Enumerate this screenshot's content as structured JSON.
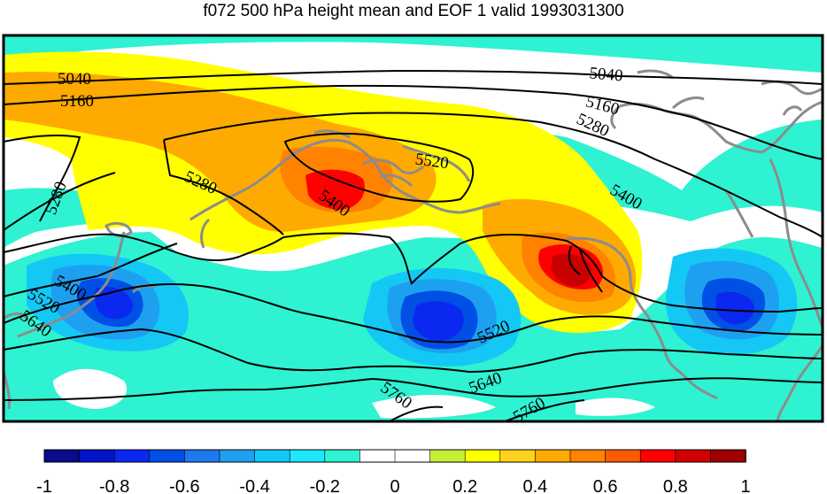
{
  "title": "f072 500 hPa height mean and EOF 1 valid 1993031300",
  "contour_labels": [
    "5040",
    "5160",
    "5280",
    "5400",
    "5520",
    "5640",
    "5760",
    "5040",
    "5160",
    "5280",
    "5400",
    "5520",
    "5280",
    "5400",
    "5520",
    "5640",
    "5760"
  ],
  "colorbar": {
    "colors": [
      "#0a0a8c",
      "#0014c8",
      "#0a28f0",
      "#0050e6",
      "#1e78f0",
      "#1ea0f0",
      "#14c8f5",
      "#1ee6ff",
      "#2ef2d2",
      "#ffffff",
      "#ffffff",
      "#c3f032",
      "#ffff00",
      "#ffd21e",
      "#ffaa00",
      "#ff8200",
      "#ff5a00",
      "#ff0000",
      "#d20000",
      "#a00000"
    ],
    "tick_labels": [
      "-1",
      "-0.8",
      "-0.6",
      "-0.4",
      "-0.2",
      "0",
      "0.2",
      "0.4",
      "0.6",
      "0.8",
      "1"
    ],
    "range": [
      -1,
      1
    ]
  }
}
